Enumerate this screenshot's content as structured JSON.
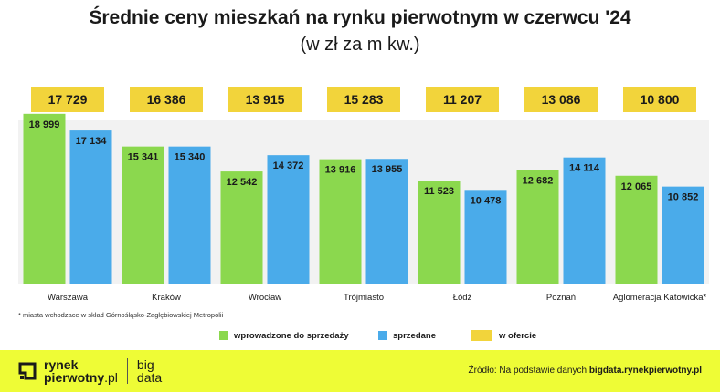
{
  "chart_data": {
    "type": "bar",
    "title": "Średnie ceny mieszkań na rynku pierwotnym w czerwcu '24",
    "subtitle": "(w zł za m kw.)",
    "categories": [
      "Warszawa",
      "Kraków",
      "Wrocław",
      "Trójmiasto",
      "Łódź",
      "Poznań",
      "Aglomeracja Katowicka*"
    ],
    "series": [
      {
        "name": "wprowadzone do sprzedaży",
        "color": "#8bd84e",
        "values": [
          18999,
          15341,
          12542,
          13916,
          11523,
          12682,
          12065
        ],
        "labels": [
          "18 999",
          "15 341",
          "12 542",
          "13 916",
          "11 523",
          "12 682",
          "12 065"
        ]
      },
      {
        "name": "sprzedane",
        "color": "#4aabea",
        "values": [
          17134,
          15340,
          14372,
          13955,
          10478,
          14114,
          10852
        ],
        "labels": [
          "17 134",
          "15 340",
          "14 372",
          "13 955",
          "10 478",
          "14 114",
          "10 852"
        ]
      },
      {
        "name": "w ofercie",
        "color": "#f2d43b",
        "values": [
          17729,
          16386,
          13915,
          15283,
          11207,
          13086,
          10800
        ],
        "labels": [
          "17 729",
          "16 386",
          "13 915",
          "15 283",
          "11 207",
          "13 086",
          "10 800"
        ]
      }
    ],
    "ylim": [
      0,
      20000
    ],
    "grid": false,
    "legend": "bottom"
  },
  "footnote": "* miasta wchodzace w skład Górnośląsko-Zagłębiowskiej Metropolii",
  "logo": {
    "line1": "rynek",
    "line2": "pierwotny",
    "line2_suffix": ".pl",
    "big1": "big",
    "big2": "data"
  },
  "source": {
    "prefix": "Źródło: Na podstawie danych ",
    "site": "bigdata.rynekpierwotny.pl"
  }
}
